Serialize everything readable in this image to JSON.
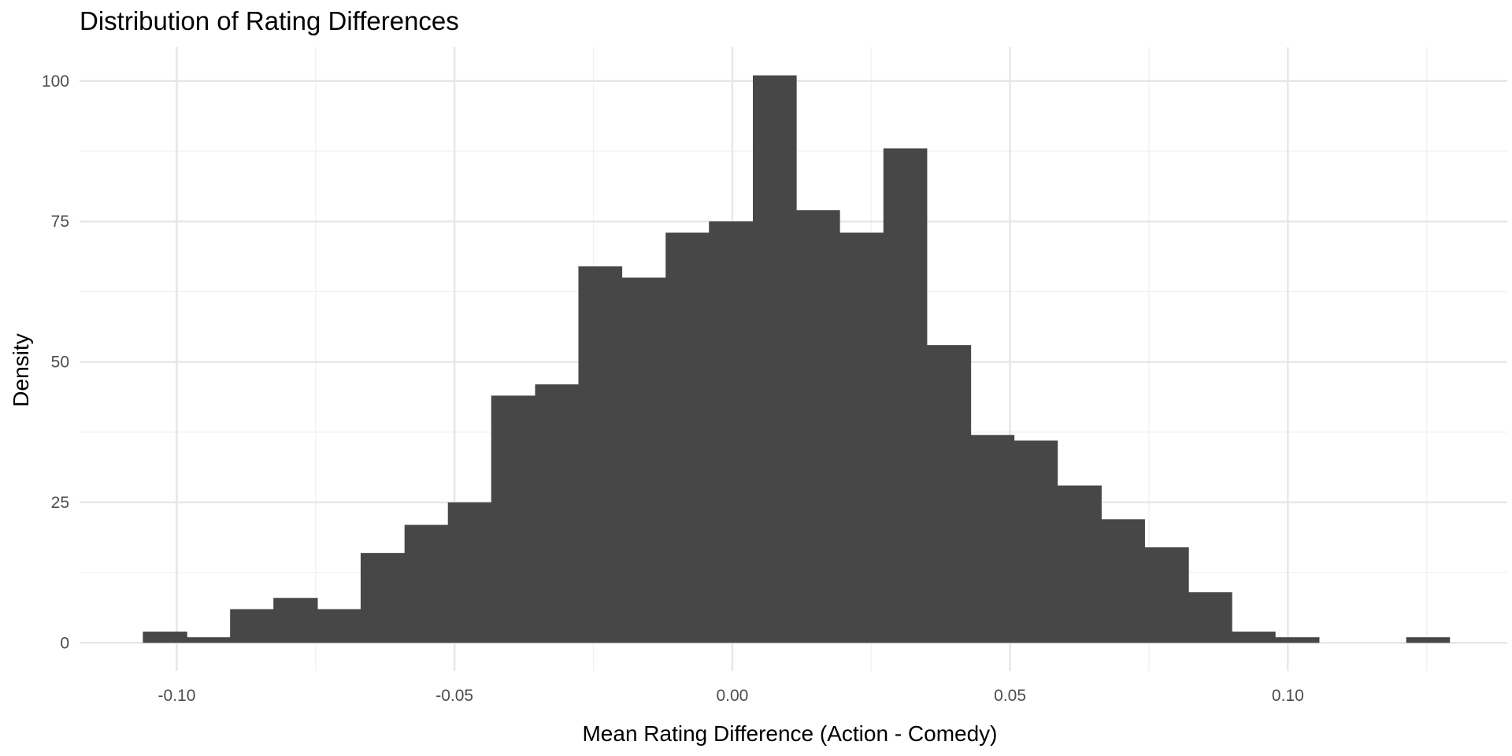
{
  "chart_data": {
    "type": "bar",
    "title": "Distribution of Rating Differences",
    "xlabel": "Mean Rating Difference (Action - Comedy)",
    "ylabel": "Density",
    "xlim": [
      -0.1175,
      0.1395
    ],
    "ylim": [
      -5,
      106
    ],
    "x_ticks": [
      -0.1,
      -0.05,
      0.0,
      0.05,
      0.1
    ],
    "x_tick_labels": [
      "-0.10",
      "-0.05",
      "0.00",
      "0.05",
      "0.10"
    ],
    "x_minor_ticks": [
      -0.075,
      -0.025,
      0.025,
      0.075,
      0.125
    ],
    "y_ticks": [
      0,
      25,
      50,
      75,
      100
    ],
    "y_tick_labels": [
      "0",
      "25",
      "50",
      "75",
      "100"
    ],
    "y_minor_ticks": [
      12.5,
      37.5,
      62.5,
      87.5
    ],
    "grid": true,
    "legend": "none",
    "bin_width": 0.007838,
    "bins": [
      {
        "x0": -0.1061,
        "x1": -0.0982,
        "value": 2
      },
      {
        "x0": -0.0982,
        "x1": -0.0904,
        "value": 1
      },
      {
        "x0": -0.0904,
        "x1": -0.0826,
        "value": 6
      },
      {
        "x0": -0.0826,
        "x1": -0.0747,
        "value": 8
      },
      {
        "x0": -0.0747,
        "x1": -0.0669,
        "value": 6
      },
      {
        "x0": -0.0669,
        "x1": -0.059,
        "value": 16
      },
      {
        "x0": -0.059,
        "x1": -0.0512,
        "value": 21
      },
      {
        "x0": -0.0512,
        "x1": -0.0434,
        "value": 25
      },
      {
        "x0": -0.0434,
        "x1": -0.0355,
        "value": 44
      },
      {
        "x0": -0.0355,
        "x1": -0.0277,
        "value": 46
      },
      {
        "x0": -0.0277,
        "x1": -0.0199,
        "value": 67
      },
      {
        "x0": -0.0199,
        "x1": -0.012,
        "value": 65
      },
      {
        "x0": -0.012,
        "x1": -0.0042,
        "value": 73
      },
      {
        "x0": -0.0042,
        "x1": 0.0037,
        "value": 75
      },
      {
        "x0": 0.0037,
        "x1": 0.0115,
        "value": 101
      },
      {
        "x0": 0.0115,
        "x1": 0.0193,
        "value": 77
      },
      {
        "x0": 0.0193,
        "x1": 0.0272,
        "value": 73
      },
      {
        "x0": 0.0272,
        "x1": 0.035,
        "value": 88
      },
      {
        "x0": 0.035,
        "x1": 0.0429,
        "value": 53
      },
      {
        "x0": 0.0429,
        "x1": 0.0507,
        "value": 37
      },
      {
        "x0": 0.0507,
        "x1": 0.0585,
        "value": 36
      },
      {
        "x0": 0.0585,
        "x1": 0.0664,
        "value": 28
      },
      {
        "x0": 0.0664,
        "x1": 0.0742,
        "value": 22
      },
      {
        "x0": 0.0742,
        "x1": 0.0821,
        "value": 17
      },
      {
        "x0": 0.0821,
        "x1": 0.0899,
        "value": 9
      },
      {
        "x0": 0.0899,
        "x1": 0.0977,
        "value": 2
      },
      {
        "x0": 0.0977,
        "x1": 0.1056,
        "value": 1
      },
      {
        "x0": 0.1056,
        "x1": 0.1134,
        "value": 0
      },
      {
        "x0": 0.1134,
        "x1": 0.1213,
        "value": 0
      },
      {
        "x0": 0.1213,
        "x1": 0.1291,
        "value": 1
      }
    ],
    "colors": {
      "bar_fill": "#474747",
      "grid_major": "#e6e6e6",
      "grid_minor": "#f0f0f0",
      "background": "#ffffff"
    }
  }
}
